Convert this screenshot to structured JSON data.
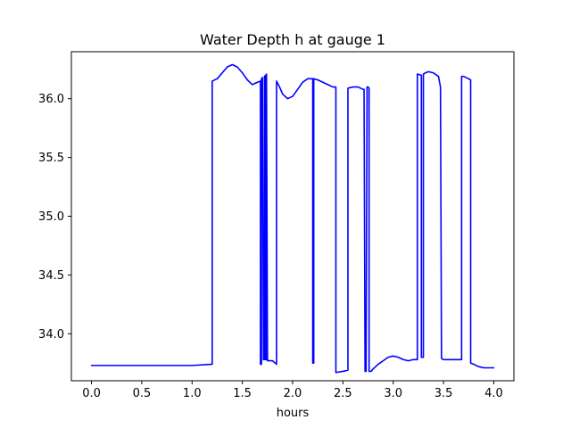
{
  "chart_data": {
    "type": "line",
    "title": "Water Depth h at gauge 1",
    "xlabel": "hours",
    "ylabel": "",
    "xlim": [
      -0.2,
      4.2
    ],
    "ylim": [
      33.6,
      36.4
    ],
    "xticks": [
      0.0,
      0.5,
      1.0,
      1.5,
      2.0,
      2.5,
      3.0,
      3.5,
      4.0
    ],
    "xtick_labels": [
      "0.0",
      "0.5",
      "1.0",
      "1.5",
      "2.0",
      "2.5",
      "3.0",
      "3.5",
      "4.0"
    ],
    "yticks": [
      34.0,
      34.5,
      35.0,
      35.5,
      36.0
    ],
    "ytick_labels": [
      "34.0",
      "34.5",
      "35.0",
      "35.5",
      "36.0"
    ],
    "grid": false,
    "legend": "none",
    "series": [
      {
        "color": "#0000ff",
        "x": [
          0.0,
          0.5,
          1.0,
          1.19,
          1.2,
          1.2,
          1.25,
          1.3,
          1.35,
          1.4,
          1.45,
          1.5,
          1.55,
          1.6,
          1.65,
          1.68,
          1.68,
          1.69,
          1.69,
          1.7,
          1.71,
          1.72,
          1.72,
          1.73,
          1.73,
          1.74,
          1.74,
          1.75,
          1.8,
          1.84,
          1.84,
          1.87,
          1.9,
          1.95,
          2.0,
          2.05,
          2.1,
          2.15,
          2.2,
          2.2,
          2.21,
          2.21,
          2.25,
          2.3,
          2.35,
          2.4,
          2.43,
          2.43,
          2.5,
          2.55,
          2.55,
          2.6,
          2.65,
          2.7,
          2.71,
          2.72,
          2.73,
          2.74,
          2.75,
          2.76,
          2.76,
          2.78,
          2.8,
          2.85,
          2.9,
          2.95,
          3.0,
          3.05,
          3.1,
          3.15,
          3.2,
          3.24,
          3.24,
          3.28,
          3.28,
          3.3,
          3.3,
          3.32,
          3.35,
          3.4,
          3.45,
          3.47,
          3.48,
          3.5,
          3.55,
          3.6,
          3.65,
          3.68,
          3.68,
          3.7,
          3.75,
          3.77,
          3.77,
          3.8,
          3.85,
          3.9,
          3.95,
          4.0
        ],
        "y": [
          33.73,
          33.73,
          33.73,
          33.74,
          33.74,
          36.15,
          36.17,
          36.22,
          36.27,
          36.29,
          36.27,
          36.22,
          36.16,
          36.12,
          36.14,
          36.15,
          33.74,
          33.74,
          36.17,
          36.18,
          33.78,
          33.78,
          36.19,
          36.2,
          33.78,
          33.78,
          36.21,
          33.77,
          33.77,
          33.74,
          36.15,
          36.1,
          36.04,
          36.0,
          36.02,
          36.08,
          36.14,
          36.17,
          36.17,
          33.75,
          33.75,
          36.17,
          36.16,
          36.14,
          36.12,
          36.1,
          36.1,
          33.67,
          33.68,
          33.69,
          36.09,
          36.1,
          36.1,
          36.08,
          36.08,
          33.68,
          33.68,
          36.1,
          36.1,
          36.09,
          33.68,
          33.68,
          33.7,
          33.74,
          33.77,
          33.8,
          33.81,
          33.8,
          33.78,
          33.77,
          33.78,
          33.78,
          36.21,
          36.2,
          33.8,
          33.8,
          36.21,
          36.22,
          36.23,
          36.22,
          36.19,
          36.1,
          33.79,
          33.78,
          33.78,
          33.78,
          33.78,
          33.78,
          36.19,
          36.19,
          36.17,
          36.16,
          33.75,
          33.74,
          33.72,
          33.71,
          33.71,
          33.71
        ]
      }
    ]
  }
}
